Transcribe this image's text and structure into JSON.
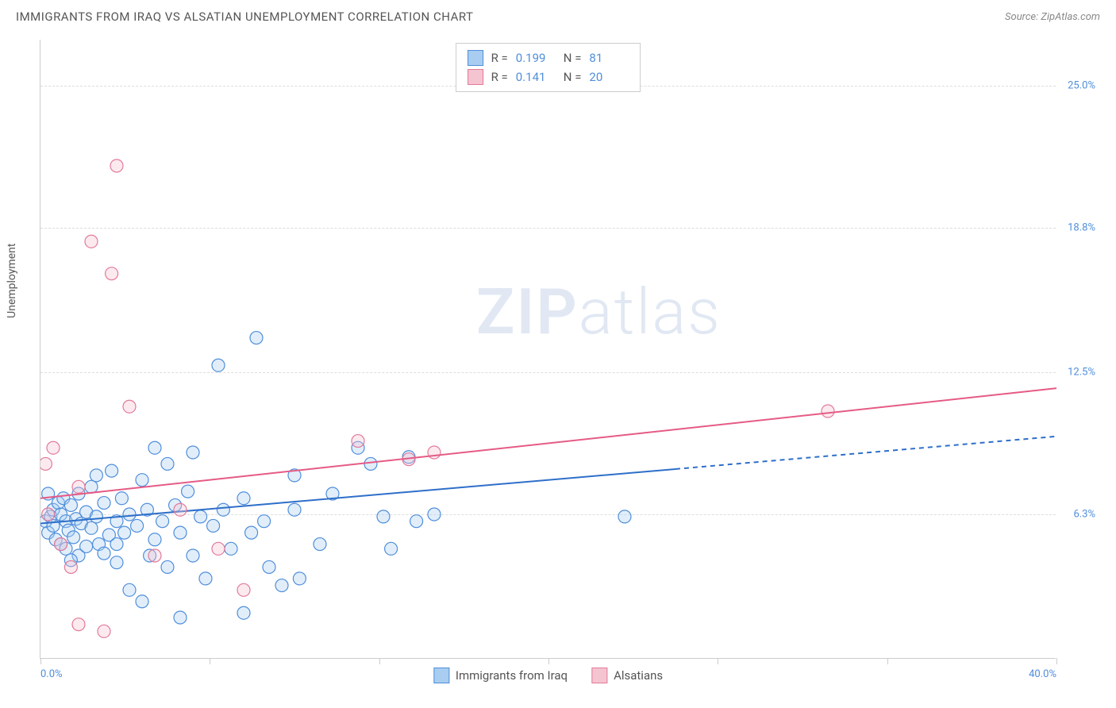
{
  "header": {
    "title": "IMMIGRANTS FROM IRAQ VS ALSATIAN UNEMPLOYMENT CORRELATION CHART",
    "source": "Source: ZipAtlas.com"
  },
  "watermark": {
    "part1": "ZIP",
    "part2": "atlas"
  },
  "chart": {
    "type": "scatter",
    "y_axis_title": "Unemployment",
    "xlim": [
      0,
      40
    ],
    "ylim": [
      0,
      27
    ],
    "x_ticks": [
      0,
      6.67,
      13.33,
      20,
      26.67,
      33.33,
      40
    ],
    "x_tick_labels_shown": {
      "0": "0.0%",
      "40": "40.0%"
    },
    "y_gridlines": [
      6.3,
      12.5,
      18.8,
      25.0
    ],
    "y_labels": [
      "6.3%",
      "12.5%",
      "18.8%",
      "25.0%"
    ],
    "background_color": "#ffffff",
    "grid_color": "#dddddd",
    "axis_color": "#cccccc",
    "tick_label_color": "#4f8edb",
    "marker_radius": 8,
    "marker_stroke_width": 1.2,
    "marker_fill_opacity": 0.35,
    "line_width": 2,
    "series": [
      {
        "key": "iraq",
        "label": "Immigrants from Iraq",
        "color_fill": "#a9cdf0",
        "color_stroke": "#4f8edb",
        "line_color": "#2e6fc9",
        "R": "0.199",
        "N": "81",
        "regression": {
          "x1": 0,
          "y1": 5.9,
          "x2": 40,
          "y2": 9.7,
          "solid_until_x": 25
        },
        "points": [
          [
            0.2,
            6.0
          ],
          [
            0.3,
            5.5
          ],
          [
            0.4,
            6.2
          ],
          [
            0.5,
            5.8
          ],
          [
            0.5,
            6.5
          ],
          [
            0.6,
            5.2
          ],
          [
            0.7,
            6.8
          ],
          [
            0.8,
            5.0
          ],
          [
            0.8,
            6.3
          ],
          [
            0.9,
            7.0
          ],
          [
            1.0,
            4.8
          ],
          [
            1.0,
            6.0
          ],
          [
            1.1,
            5.6
          ],
          [
            1.2,
            6.7
          ],
          [
            1.3,
            5.3
          ],
          [
            1.4,
            6.1
          ],
          [
            1.5,
            4.5
          ],
          [
            1.5,
            7.2
          ],
          [
            1.6,
            5.9
          ],
          [
            1.8,
            6.4
          ],
          [
            1.8,
            4.9
          ],
          [
            2.0,
            5.7
          ],
          [
            2.0,
            7.5
          ],
          [
            2.2,
            6.2
          ],
          [
            2.3,
            5.0
          ],
          [
            2.5,
            6.8
          ],
          [
            2.5,
            4.6
          ],
          [
            2.7,
            5.4
          ],
          [
            2.8,
            8.2
          ],
          [
            3.0,
            6.0
          ],
          [
            3.0,
            4.2
          ],
          [
            3.2,
            7.0
          ],
          [
            3.3,
            5.5
          ],
          [
            3.5,
            6.3
          ],
          [
            3.5,
            3.0
          ],
          [
            3.8,
            5.8
          ],
          [
            4.0,
            7.8
          ],
          [
            4.0,
            2.5
          ],
          [
            4.2,
            6.5
          ],
          [
            4.5,
            5.2
          ],
          [
            4.5,
            9.2
          ],
          [
            4.8,
            6.0
          ],
          [
            5.0,
            4.0
          ],
          [
            5.0,
            8.5
          ],
          [
            5.3,
            6.7
          ],
          [
            5.5,
            5.5
          ],
          [
            5.5,
            1.8
          ],
          [
            5.8,
            7.3
          ],
          [
            6.0,
            4.5
          ],
          [
            6.0,
            9.0
          ],
          [
            6.3,
            6.2
          ],
          [
            6.5,
            3.5
          ],
          [
            6.8,
            5.8
          ],
          [
            7.0,
            12.8
          ],
          [
            7.2,
            6.5
          ],
          [
            7.5,
            4.8
          ],
          [
            8.0,
            7.0
          ],
          [
            8.0,
            2.0
          ],
          [
            8.3,
            5.5
          ],
          [
            8.5,
            14.0
          ],
          [
            8.8,
            6.0
          ],
          [
            9.0,
            4.0
          ],
          [
            9.5,
            3.2
          ],
          [
            10.0,
            6.5
          ],
          [
            10.0,
            8.0
          ],
          [
            10.2,
            3.5
          ],
          [
            11.0,
            5.0
          ],
          [
            11.5,
            7.2
          ],
          [
            12.5,
            9.2
          ],
          [
            13.0,
            8.5
          ],
          [
            13.5,
            6.2
          ],
          [
            13.8,
            4.8
          ],
          [
            14.5,
            8.8
          ],
          [
            14.8,
            6.0
          ],
          [
            15.5,
            6.3
          ],
          [
            23.0,
            6.2
          ],
          [
            0.3,
            7.2
          ],
          [
            1.2,
            4.3
          ],
          [
            2.2,
            8.0
          ],
          [
            3.0,
            5.0
          ],
          [
            4.3,
            4.5
          ]
        ]
      },
      {
        "key": "alsatians",
        "label": "Alsatians",
        "color_fill": "#f5c4d1",
        "color_stroke": "#e27a9a",
        "line_color": "#e55b85",
        "R": "0.141",
        "N": "20",
        "regression": {
          "x1": 0,
          "y1": 7.0,
          "x2": 40,
          "y2": 11.8,
          "solid_until_x": 40
        },
        "points": [
          [
            0.3,
            6.3
          ],
          [
            0.5,
            9.2
          ],
          [
            0.8,
            5.0
          ],
          [
            1.2,
            4.0
          ],
          [
            1.5,
            7.5
          ],
          [
            1.5,
            1.5
          ],
          [
            2.0,
            18.2
          ],
          [
            2.5,
            1.2
          ],
          [
            2.8,
            16.8
          ],
          [
            3.0,
            21.5
          ],
          [
            3.5,
            11.0
          ],
          [
            4.5,
            4.5
          ],
          [
            5.5,
            6.5
          ],
          [
            7.0,
            4.8
          ],
          [
            8.0,
            3.0
          ],
          [
            12.5,
            9.5
          ],
          [
            14.5,
            8.7
          ],
          [
            15.5,
            9.0
          ],
          [
            31.0,
            10.8
          ],
          [
            0.2,
            8.5
          ]
        ]
      }
    ]
  },
  "legend_top_labels": {
    "r": "R = ",
    "n": "N = "
  }
}
